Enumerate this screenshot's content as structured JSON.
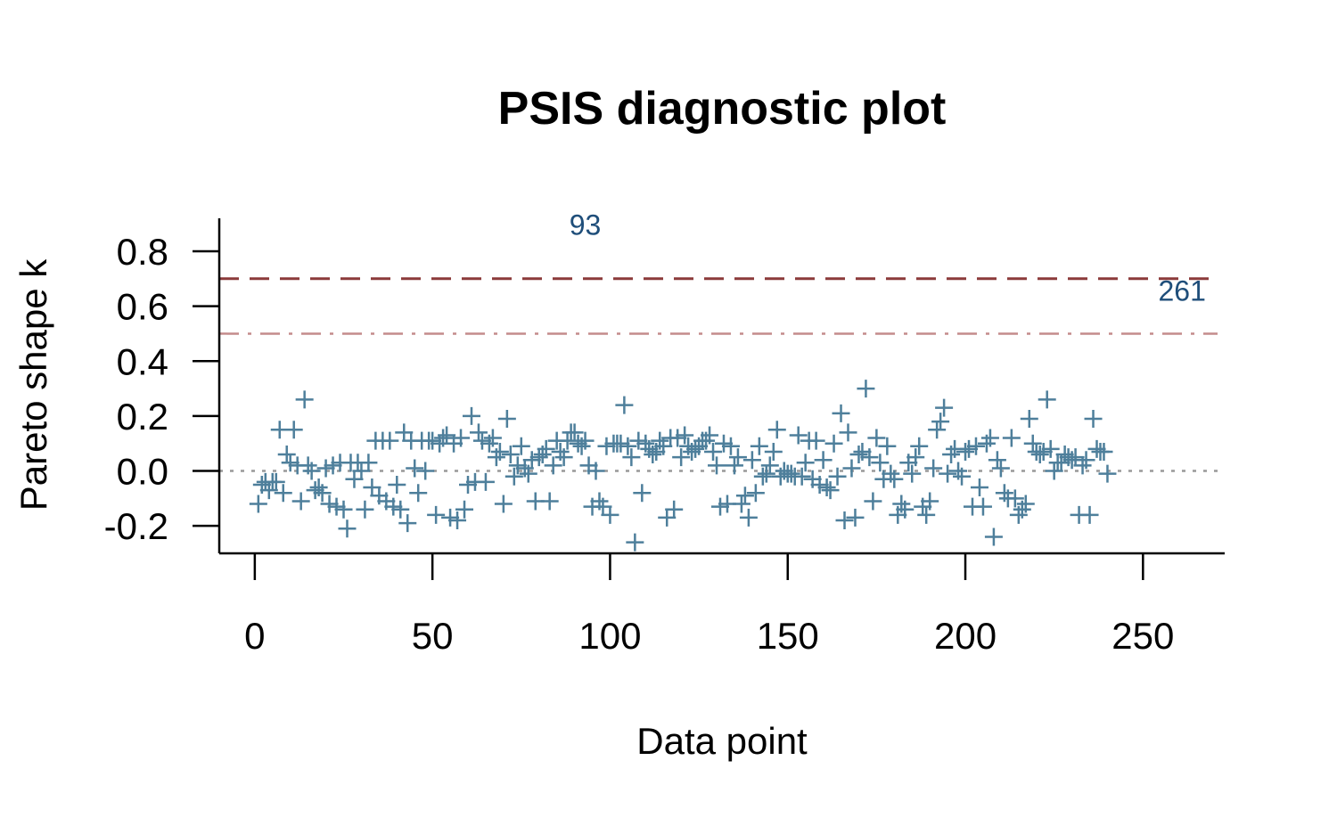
{
  "chart_data": {
    "type": "scatter",
    "title": "PSIS diagnostic plot",
    "xlabel": "Data point",
    "ylabel": "Pareto shape k",
    "xlim": [
      -10,
      273
    ],
    "ylim": [
      -0.3,
      0.92
    ],
    "x_ticks": [
      "0",
      "50",
      "100",
      "150",
      "200",
      "250"
    ],
    "y_ticks": [
      "-0.2",
      "0.0",
      "0.2",
      "0.4",
      "0.6",
      "0.8"
    ],
    "marker": "+",
    "point_color": "#4e7f9b",
    "label_color": "#1f4e7a",
    "reference_lines": [
      {
        "y": 0.7,
        "style": "dashed",
        "color": "#8b3a3a"
      },
      {
        "y": 0.5,
        "style": "dashdot",
        "color": "#c48c8c"
      },
      {
        "y": 0.0,
        "style": "dotted",
        "color": "#999999"
      }
    ],
    "point_labels": [
      {
        "x": 93,
        "y": 0.86,
        "text": "93"
      },
      {
        "x": 261,
        "y": 0.62,
        "text": "261"
      }
    ],
    "values": [
      -0.12,
      -0.05,
      -0.04,
      -0.07,
      -0.04,
      -0.04,
      0.15,
      -0.08,
      0.06,
      0.03,
      0.15,
      0.02,
      -0.11,
      0.26,
      0.02,
      0.0,
      -0.07,
      -0.06,
      -0.08,
      0.01,
      -0.12,
      0.02,
      -0.13,
      0.03,
      -0.14,
      -0.21,
      0.03,
      -0.03,
      0.03,
      0.0,
      -0.14,
      0.03,
      -0.06,
      0.11,
      -0.09,
      0.11,
      -0.11,
      0.11,
      -0.13,
      -0.05,
      -0.14,
      0.14,
      -0.19,
      0.11,
      0.01,
      -0.08,
      0.11,
      0.0,
      0.11,
      0.11,
      -0.16,
      0.1,
      0.12,
      0.13,
      -0.17,
      0.1,
      -0.18,
      0.12,
      -0.14,
      -0.05,
      0.2,
      -0.04,
      0.14,
      0.11,
      -0.04,
      0.1,
      0.12,
      0.05,
      0.07,
      -0.12,
      0.19,
      0.06,
      -0.02,
      0.02,
      0.09,
      0.01,
      -0.01,
      0.04,
      -0.11,
      0.05,
      0.06,
      0.08,
      -0.11,
      0.02,
      0.11,
      0.07,
      0.05,
      0.11,
      0.14,
      0.14,
      0.1,
      0.09,
      0.11,
      0.02,
      -0.13,
      0.0,
      -0.11,
      -0.13,
      0.09,
      -0.16,
      0.1,
      0.1,
      0.1,
      0.24,
      0.09,
      0.05,
      -0.26,
      0.11,
      -0.08,
      0.1,
      0.08,
      0.06,
      0.07,
      0.11,
      0.09,
      -0.17,
      0.12,
      -0.14,
      0.12,
      0.05,
      0.13,
      0.09,
      0.07,
      0.08,
      0.09,
      0.11,
      0.11,
      0.13,
      0.07,
      0.02,
      -0.13,
      0.1,
      -0.12,
      0.09,
      0.02,
      0.05,
      -0.12,
      -0.09,
      -0.17,
      0.04,
      -0.08,
      0.09,
      -0.02,
      -0.01,
      0.02,
      0.07,
      0.15,
      -0.02,
      0.0,
      -0.01,
      -0.01,
      -0.02,
      0.13,
      -0.02,
      0.03,
      0.11,
      -0.03,
      0.11,
      -0.05,
      0.04,
      -0.06,
      -0.07,
      0.1,
      -0.02,
      0.21,
      -0.18,
      0.14,
      0.01,
      -0.17,
      0.06,
      0.07,
      0.3,
      0.05,
      -0.11,
      0.12,
      0.03,
      -0.03,
      0.09,
      -0.01,
      -0.03,
      -0.16,
      -0.12,
      -0.14,
      0.03,
      -0.01,
      0.05,
      0.09,
      -0.13,
      -0.16,
      -0.11,
      0.01,
      0.15,
      0.18,
      0.23,
      -0.01,
      0.06,
      0.08,
      0.0,
      -0.02,
      0.07,
      0.08,
      -0.13,
      0.09,
      -0.06,
      -0.13,
      0.1,
      0.12,
      -0.24,
      0.04,
      0.01,
      -0.08,
      -0.1,
      0.12,
      -0.1,
      -0.16,
      -0.14,
      -0.12,
      0.19,
      0.1,
      0.07,
      0.06,
      0.07,
      0.26,
      0.08,
      0.0,
      0.03,
      0.03,
      0.06,
      0.05,
      0.04,
      0.05,
      -0.16,
      0.02,
      0.04,
      -0.16,
      0.19,
      0.08,
      0.07,
      0.07,
      -0.01
    ]
  }
}
